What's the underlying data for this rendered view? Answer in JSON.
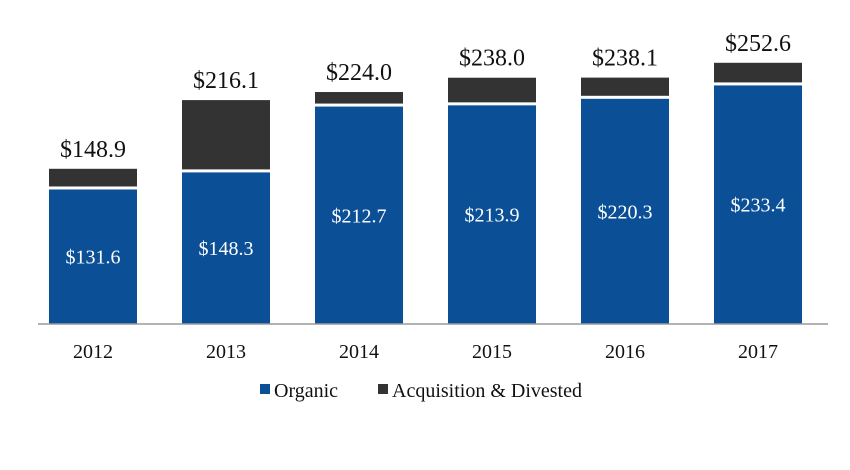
{
  "chart_data": {
    "type": "bar",
    "stacked": true,
    "categories": [
      "2012",
      "2013",
      "2014",
      "2015",
      "2016",
      "2017"
    ],
    "series": [
      {
        "name": "Organic",
        "color": "#0b4f96",
        "values": [
          131.6,
          148.3,
          212.7,
          213.9,
          220.3,
          233.4
        ],
        "labels": [
          "$131.6",
          "$148.3",
          "$212.7",
          "$213.9",
          "$220.3",
          "$233.4"
        ]
      },
      {
        "name": "Acquisition & Divested",
        "color": "#333333",
        "values": [
          17.3,
          67.8,
          11.3,
          24.1,
          17.8,
          19.2
        ]
      }
    ],
    "totals": [
      148.9,
      216.1,
      224.0,
      238.0,
      238.1,
      252.6
    ],
    "total_labels": [
      "$148.9",
      "$216.1",
      "$224.0",
      "$238.0",
      "$238.1",
      "$252.6"
    ],
    "title": "",
    "xlabel": "",
    "ylabel": "",
    "ylim": [
      0,
      270
    ],
    "grid": false,
    "legend_position": "bottom"
  }
}
